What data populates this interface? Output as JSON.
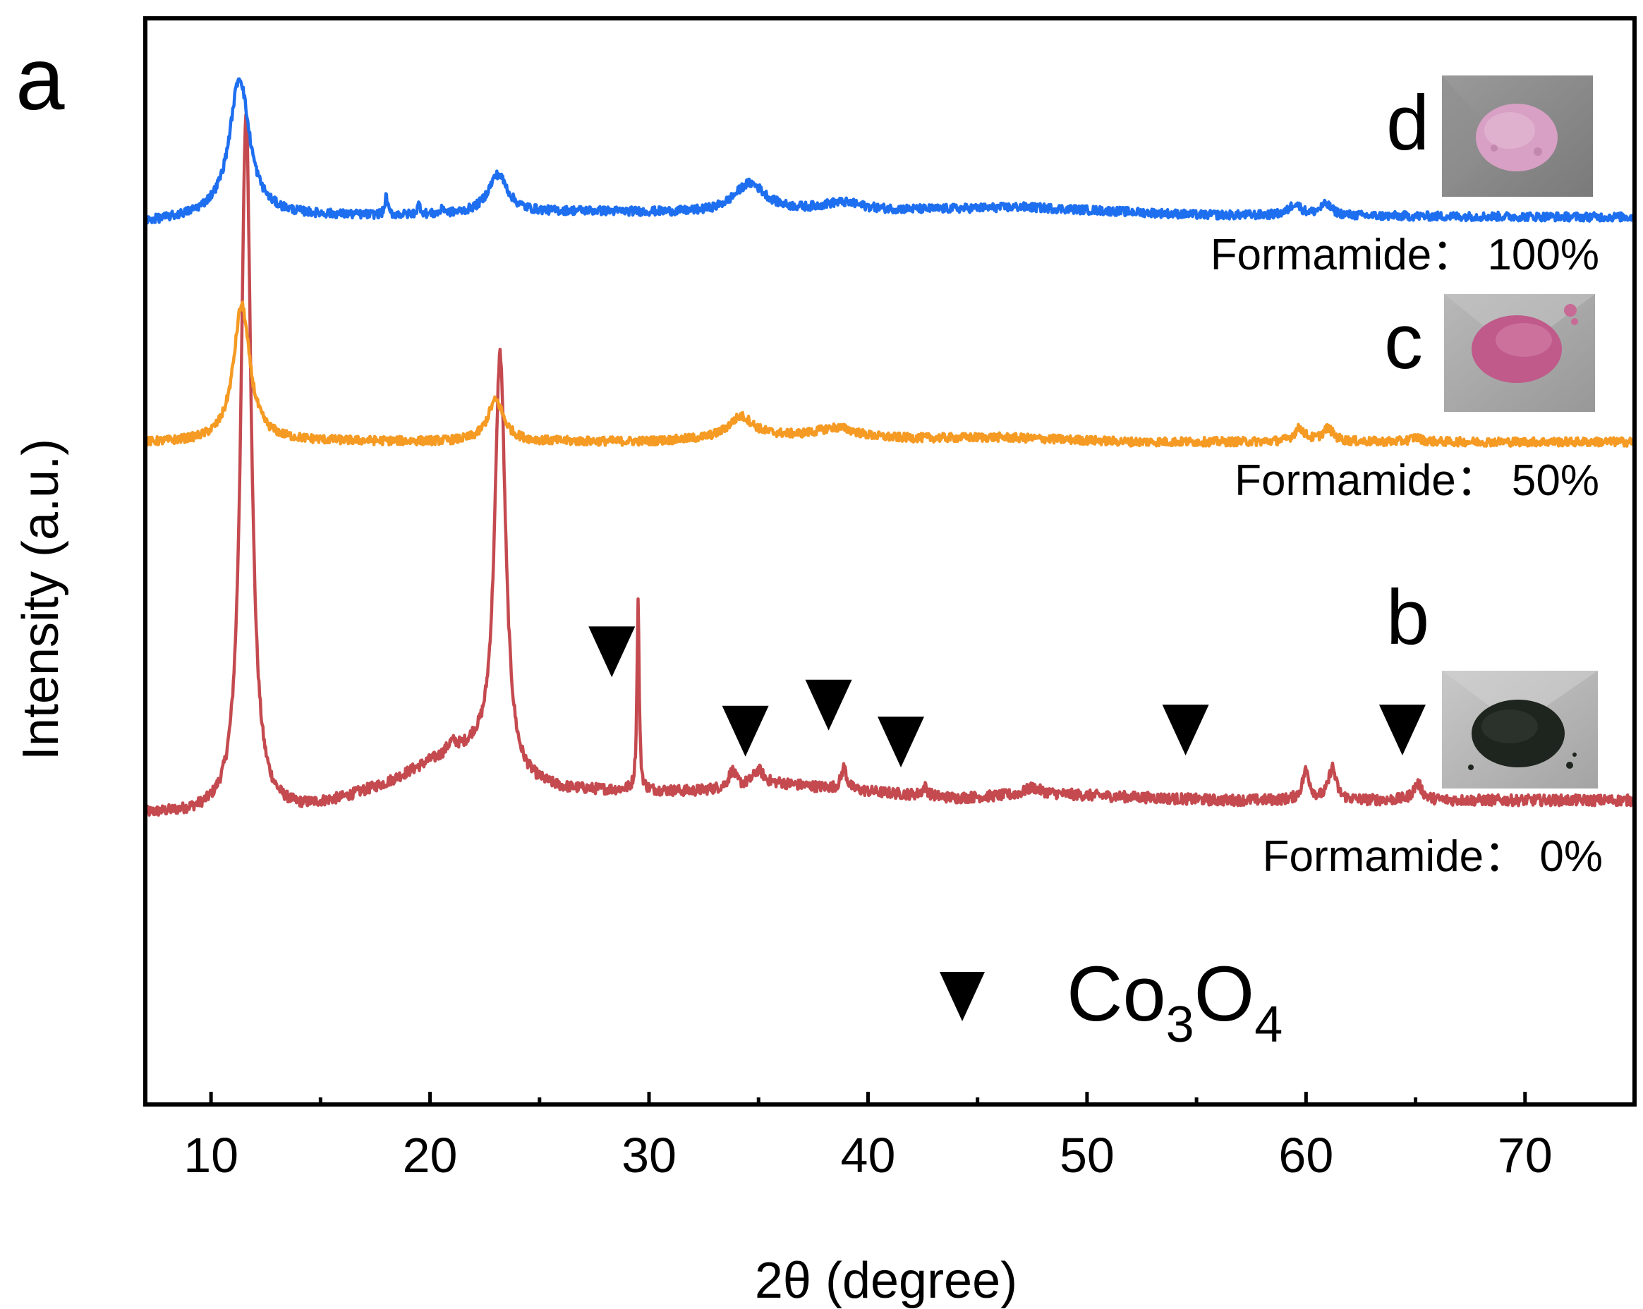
{
  "chart_data": {
    "type": "line",
    "panel_label": "a",
    "xlabel": "2θ (degree)",
    "ylabel": "Intensity (a.u.)",
    "xlim": [
      7,
      75
    ],
    "ylim": [
      0,
      100
    ],
    "x_ticks": [
      10,
      20,
      30,
      40,
      50,
      60,
      70
    ],
    "x_minor_ticks": [
      15,
      25,
      35,
      45,
      55,
      65,
      75
    ],
    "grid": false,
    "series": [
      {
        "id": "b",
        "label": "b",
        "name": "Formamide： 0%",
        "color": "#c44a4f",
        "baseline": [
          [
            7,
            26.7
          ],
          [
            12,
            26.7
          ],
          [
            14,
            27.0
          ],
          [
            16,
            28.0
          ],
          [
            18,
            29.4
          ],
          [
            20,
            31.3
          ],
          [
            22,
            32.2
          ],
          [
            24,
            29.5
          ],
          [
            26,
            28.9
          ],
          [
            32,
            28.8
          ],
          [
            36,
            29.5
          ],
          [
            40,
            28.8
          ],
          [
            44,
            28.2
          ],
          [
            48,
            28.6
          ],
          [
            56,
            28.0
          ],
          [
            62,
            28.0
          ],
          [
            75,
            28.0
          ]
        ],
        "peaks": [
          [
            11.6,
            64.5,
            0.28
          ],
          [
            23.2,
            38.6,
            0.3
          ],
          [
            29.5,
            17.5,
            0.06
          ],
          [
            33.8,
            1.5,
            0.2
          ],
          [
            35.0,
            1.4,
            0.3
          ],
          [
            38.9,
            2.0,
            0.15
          ],
          [
            42.6,
            0.8,
            0.15
          ],
          [
            47.5,
            0.6,
            0.4
          ],
          [
            60.0,
            2.7,
            0.2
          ],
          [
            61.2,
            3.0,
            0.2
          ],
          [
            65.1,
            1.5,
            0.25
          ],
          [
            21.0,
            1.0,
            0.3
          ]
        ],
        "noise": 0.5
      },
      {
        "id": "c",
        "label": "c",
        "name": "Formamide： 50%",
        "color": "#f59a23",
        "baseline": [
          [
            7,
            60.9
          ],
          [
            12,
            61.1
          ],
          [
            20,
            61.0
          ],
          [
            30,
            61.0
          ],
          [
            36,
            61.4
          ],
          [
            40,
            61.2
          ],
          [
            46,
            61.4
          ],
          [
            52,
            61.0
          ],
          [
            60,
            61.0
          ],
          [
            75,
            61.0
          ]
        ],
        "peaks": [
          [
            11.4,
            12.5,
            0.45
          ],
          [
            23.0,
            3.8,
            0.45
          ],
          [
            34.2,
            2.0,
            0.7
          ],
          [
            38.6,
            1.0,
            1.2
          ],
          [
            59.7,
            1.2,
            0.3
          ],
          [
            61.0,
            1.2,
            0.3
          ],
          [
            65.0,
            0.4,
            0.3
          ]
        ],
        "noise": 0.4
      },
      {
        "id": "d",
        "label": "d",
        "name": "Formamide： 100%",
        "color": "#1e6ff0",
        "baseline": [
          [
            7,
            81.2
          ],
          [
            10,
            81.8
          ],
          [
            15,
            81.8
          ],
          [
            20,
            81.8
          ],
          [
            27,
            82.2
          ],
          [
            33,
            82.0
          ],
          [
            40,
            82.2
          ],
          [
            47,
            82.6
          ],
          [
            55,
            81.9
          ],
          [
            62,
            81.8
          ],
          [
            75,
            81.7
          ]
        ],
        "peaks": [
          [
            11.3,
            12.7,
            0.55
          ],
          [
            18.0,
            1.7,
            0.07
          ],
          [
            19.5,
            0.9,
            0.1
          ],
          [
            20.6,
            0.5,
            0.1
          ],
          [
            23.1,
            3.6,
            0.55
          ],
          [
            34.6,
            2.7,
            0.9
          ],
          [
            38.8,
            0.8,
            1.2
          ],
          [
            59.5,
            1.1,
            0.3
          ],
          [
            60.9,
            1.0,
            0.35
          ]
        ],
        "noise": 0.4
      }
    ],
    "markers": {
      "symbol": "▼",
      "label": "Co3O4",
      "legend_text": {
        "base": "Co",
        "sub1": "3",
        "mid": "O",
        "sub2": "4"
      },
      "points": [
        [
          28.3,
          41.8
        ],
        [
          34.4,
          34.5
        ],
        [
          38.2,
          36.9
        ],
        [
          41.5,
          33.5
        ],
        [
          54.5,
          34.6
        ],
        [
          64.4,
          34.6
        ]
      ]
    },
    "annotations": [
      {
        "series": "d",
        "letter": "d",
        "caption": "Formamide： 100%"
      },
      {
        "series": "c",
        "letter": "c",
        "caption": "Formamide： 50%"
      },
      {
        "series": "b",
        "letter": "b",
        "caption": "Formamide： 0%"
      }
    ]
  },
  "photos": {
    "d": {
      "name": "pink-powder-photo",
      "powder_color": "#d8a0c4",
      "background": "#8a8a8a"
    },
    "c": {
      "name": "magenta-powder-photo",
      "powder_color": "#c05a8a",
      "background": "#a8a8a8"
    },
    "b": {
      "name": "black-powder-photo",
      "powder_color": "#1e241e",
      "background": "#b8b8b8"
    }
  }
}
